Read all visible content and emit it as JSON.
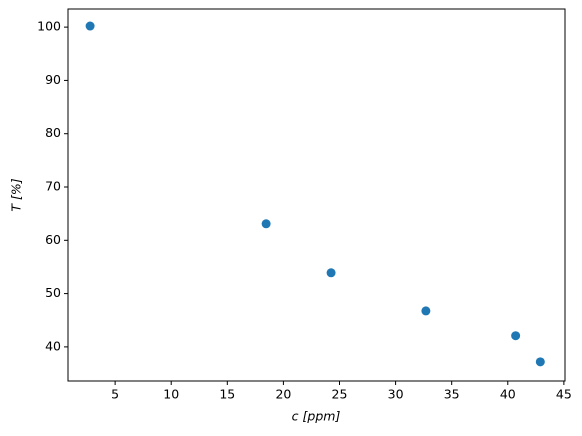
{
  "chart_data": {
    "type": "scatter",
    "x_label": "c [ppm]",
    "y_label": "T [%]",
    "x": [
      2.77,
      18.46,
      24.25,
      32.7,
      40.7,
      42.9
    ],
    "series": [
      {
        "color": "#1f77b4",
        "values": [
          100.2,
          63.1,
          53.9,
          46.75,
          42.1,
          37.2
        ]
      }
    ],
    "xlim": [
      0.8,
      45.1
    ],
    "ylim": [
      33.6,
      103.4
    ],
    "xticks": [
      5,
      10,
      15,
      20,
      25,
      30,
      35,
      40,
      45
    ],
    "yticks": [
      40,
      50,
      60,
      70,
      80,
      90,
      100
    ],
    "grid": false
  }
}
